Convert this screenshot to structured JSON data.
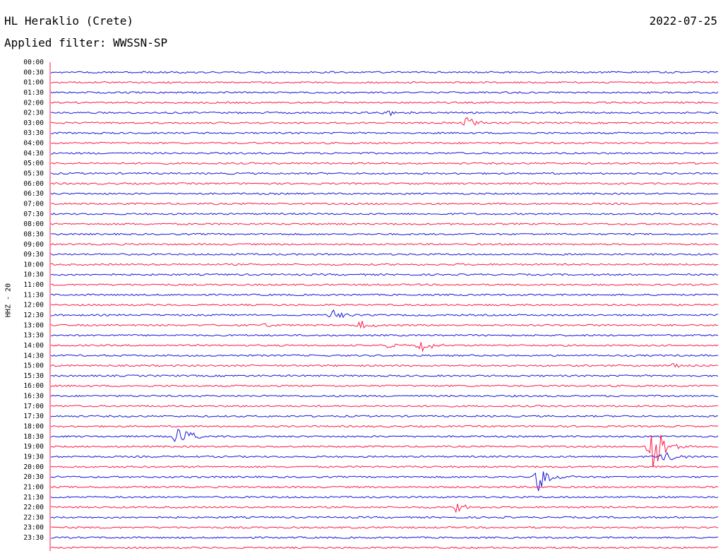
{
  "header": {
    "station": "HL Heraklio (Crete)",
    "date": "2022-07-25",
    "filter_text": "Applied filter: WWSSN-SP"
  },
  "chart_data": {
    "type": "line",
    "ylabel": "HHZ - 20",
    "tick_labels": [
      "00:00",
      "00:30",
      "01:00",
      "01:30",
      "02:00",
      "02:30",
      "03:00",
      "03:30",
      "04:00",
      "04:30",
      "05:00",
      "05:30",
      "06:00",
      "06:30",
      "07:00",
      "07:30",
      "08:00",
      "08:30",
      "09:00",
      "09:30",
      "10:00",
      "10:30",
      "11:00",
      "11:30",
      "12:00",
      "12:30",
      "13:00",
      "13:30",
      "14:00",
      "14:30",
      "15:00",
      "15:30",
      "16:00",
      "16:30",
      "17:00",
      "17:30",
      "18:00",
      "18:30",
      "19:00",
      "19:30",
      "20:00",
      "20:30",
      "21:00",
      "21:30",
      "22:00",
      "22:30",
      "23:00",
      "23:30"
    ],
    "trace_colors": [
      "#1414dc",
      "#ff1744"
    ],
    "trace_minutes": 30,
    "events": [
      {
        "row": "02:30",
        "minute": 15.1,
        "amplitude": 0.7
      },
      {
        "row": "03:00",
        "minute": 18.7,
        "amplitude": 0.85
      },
      {
        "row": "12:30",
        "minute": 12.7,
        "amplitude": 0.9
      },
      {
        "row": "13:00",
        "minute": 13.9,
        "amplitude": 0.8
      },
      {
        "row": "13:00",
        "minute": 9.6,
        "amplitude": 0.3
      },
      {
        "row": "14:00",
        "minute": 16.6,
        "amplitude": 1.2
      },
      {
        "row": "14:00",
        "minute": 15.2,
        "amplitude": 0.6
      },
      {
        "row": "15:00",
        "minute": 28.0,
        "amplitude": 0.6
      },
      {
        "row": "18:30",
        "minute": 5.7,
        "amplitude": 2.5
      },
      {
        "row": "19:00",
        "minute": 27.0,
        "amplitude": 5.5
      },
      {
        "row": "19:30",
        "minute": 27.6,
        "amplitude": 1.2
      },
      {
        "row": "20:30",
        "minute": 21.9,
        "amplitude": 2.4
      },
      {
        "row": "22:00",
        "minute": 18.2,
        "amplitude": 0.8
      }
    ],
    "grid": false
  }
}
